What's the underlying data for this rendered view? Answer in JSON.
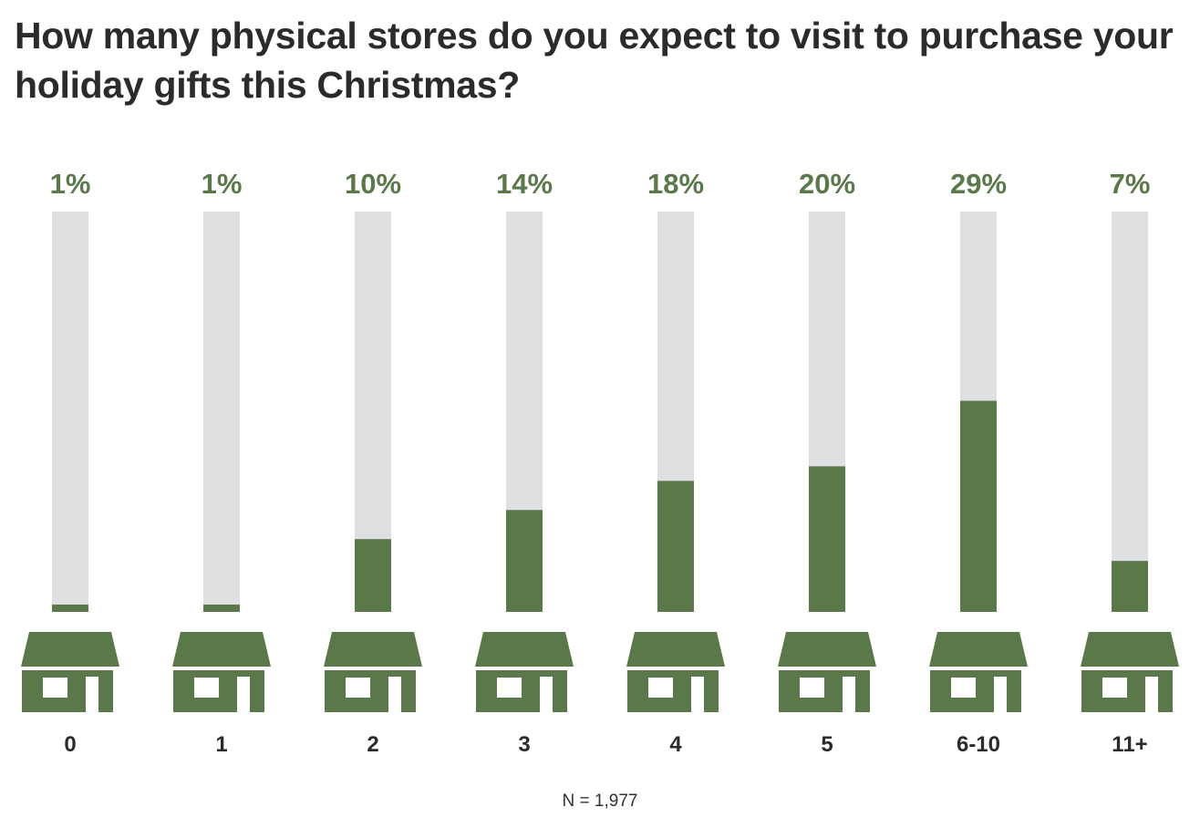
{
  "chart_data": {
    "type": "bar",
    "title": "How many physical stores do you expect to visit to purchase your holiday gifts this Christmas?",
    "categories": [
      "0",
      "1",
      "2",
      "3",
      "4",
      "5",
      "6-10",
      "11+"
    ],
    "values": [
      1,
      1,
      10,
      14,
      18,
      20,
      29,
      7
    ],
    "value_labels": [
      "1%",
      "1%",
      "10%",
      "14%",
      "18%",
      "20%",
      "29%",
      "7%"
    ],
    "ylim": [
      0,
      55
    ],
    "grid": false,
    "note": "N = 1,977",
    "colors": {
      "bar": "#5b784b",
      "track": "#dfe0e1",
      "label": "#5b784b",
      "text": "#2b2b2b"
    },
    "icon": "store-icon"
  }
}
